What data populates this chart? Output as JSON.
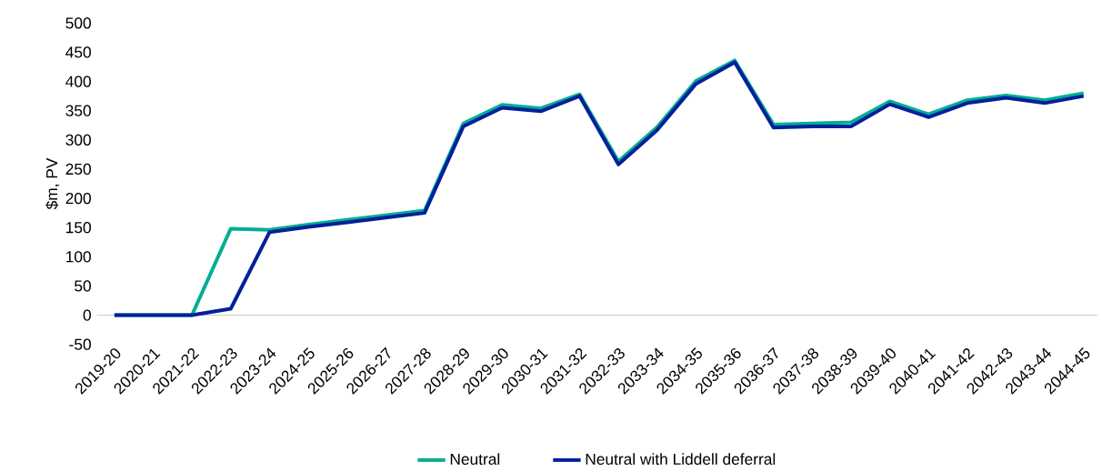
{
  "chart_data": {
    "type": "line",
    "ylabel": "$m, PV",
    "categories": [
      "2019-20",
      "2020-21",
      "2021-22",
      "2022-23",
      "2023-24",
      "2024-25",
      "2025-26",
      "2026-27",
      "2027-28",
      "2028-29",
      "2029-30",
      "2030-31",
      "2031-32",
      "2032-33",
      "2033-34",
      "2034-35",
      "2035-36",
      "2036-37",
      "2037-38",
      "2038-39",
      "2039-40",
      "2040-41",
      "2041-42",
      "2042-43",
      "2043-44",
      "2044-45"
    ],
    "series": [
      {
        "name": "Neutral",
        "color": "#00ae94",
        "values": [
          0,
          0,
          0,
          148,
          146,
          155,
          163,
          171,
          179,
          328,
          360,
          354,
          378,
          263,
          322,
          401,
          436,
          326,
          328,
          330,
          366,
          344,
          368,
          376,
          368,
          380
        ]
      },
      {
        "name": "Neutral with Liddell deferral",
        "color": "#00209a",
        "values": [
          0,
          0,
          0,
          11,
          142,
          151,
          159,
          167,
          175,
          323,
          355,
          349,
          375,
          258,
          317,
          396,
          433,
          321,
          323,
          323,
          361,
          339,
          363,
          372,
          363,
          375
        ]
      }
    ],
    "ylim": [
      -50,
      500
    ],
    "yticks": [
      -50,
      0,
      50,
      100,
      150,
      200,
      250,
      300,
      350,
      400,
      450,
      500
    ],
    "grid": false,
    "legend": "bottom",
    "marker": "none",
    "line_style": "solid"
  }
}
